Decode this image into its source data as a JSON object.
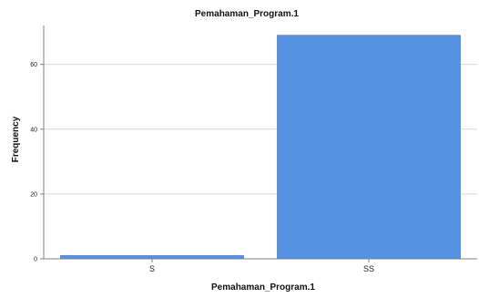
{
  "chart_data": {
    "type": "bar",
    "title": "Pemahaman_Program.1",
    "xlabel": "Pemahaman_Program.1",
    "ylabel": "Frequency",
    "categories": [
      "S",
      "SS"
    ],
    "values": [
      1,
      69
    ],
    "ylim": [
      0,
      72
    ],
    "yticks": [
      0,
      20,
      40,
      60
    ],
    "grid": true,
    "legend": "none",
    "colors": {
      "bar": "#5592E2",
      "bar_stroke": "#3F77C2",
      "grid": "#D9D9D9",
      "axis": "#808080"
    }
  }
}
